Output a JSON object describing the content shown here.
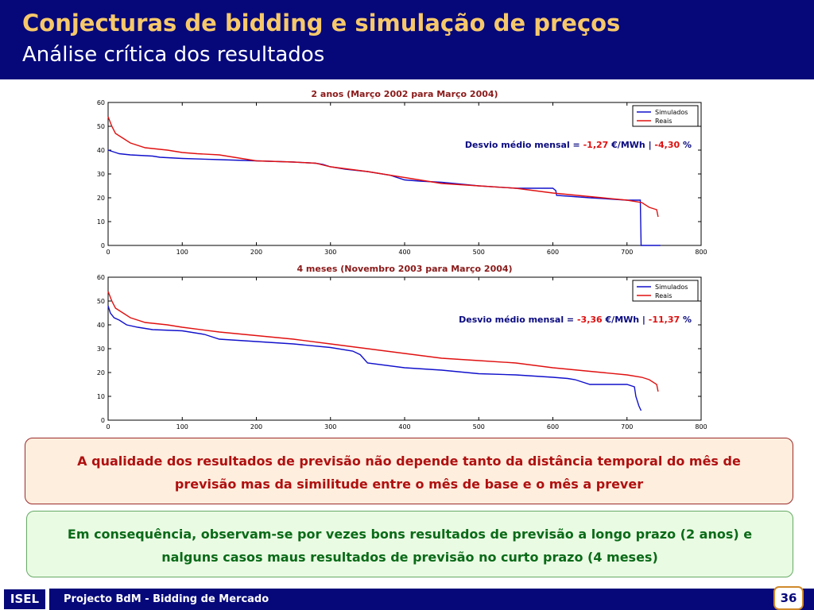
{
  "slide": {
    "title": "Conjecturas de bidding e simulação de preços",
    "subtitle": "Análise crítica dos resultados",
    "notes": [
      "A qualidade dos resultados de previsão não depende tanto da distância temporal do mês de previsão mas da similitude entre o mês de base e o mês a prever",
      "Em consequência, observam-se por vezes bons resultados de previsão a longo prazo (2 anos) e nalguns casos maus resultados de previsão no curto prazo (4 meses)"
    ],
    "footer": {
      "org": "ISEL",
      "project": "Projecto BdM - Bidding de Mercado",
      "page": "36"
    }
  },
  "colors": {
    "header": "#06087a",
    "title": "#f6c86a",
    "simulados": "#1010cc",
    "reais": "#e01010",
    "chart_title": "#8b1a1a"
  },
  "chart_data": [
    {
      "type": "line",
      "title": "2 anos (Março 2002 para Março 2004)",
      "xlim": [
        0,
        800
      ],
      "ylim": [
        0,
        60
      ],
      "xticks": [
        0,
        100,
        200,
        300,
        400,
        500,
        600,
        700,
        800
      ],
      "yticks": [
        0,
        10,
        20,
        30,
        40,
        50,
        60
      ],
      "legend": "top-right",
      "annotation": {
        "prefix": "Desvio médio mensal = ",
        "value1": "-1,27",
        "unit1": " €/MWh | ",
        "value2": "-4,30",
        "unit2": " %"
      },
      "series": [
        {
          "name": "Simulados",
          "color": "#1010cc",
          "x": [
            0,
            10,
            15,
            30,
            60,
            70,
            100,
            150,
            200,
            250,
            280,
            290,
            300,
            320,
            350,
            380,
            400,
            420,
            450,
            500,
            550,
            600,
            604,
            605,
            650,
            700,
            718,
            719,
            745
          ],
          "y": [
            40,
            39,
            38.5,
            38,
            37.5,
            37,
            36.5,
            36,
            35.5,
            35,
            34.5,
            34,
            33,
            32,
            31,
            29.5,
            27.5,
            27,
            26.5,
            25,
            24,
            24,
            23,
            21,
            20,
            19,
            19,
            0,
            0
          ]
        },
        {
          "name": "Reais",
          "color": "#e01010",
          "x": [
            0,
            5,
            10,
            20,
            30,
            50,
            80,
            100,
            120,
            150,
            170,
            200,
            250,
            280,
            300,
            350,
            400,
            450,
            500,
            550,
            600,
            650,
            700,
            720,
            730,
            740,
            742
          ],
          "y": [
            54,
            50,
            47,
            45,
            43,
            41,
            40,
            39,
            38.5,
            38,
            37,
            35.5,
            35,
            34.5,
            33,
            31,
            28.5,
            26,
            25,
            24,
            22,
            20.5,
            19,
            18,
            16,
            15,
            12
          ]
        }
      ]
    },
    {
      "type": "line",
      "title": "4 meses (Novembro 2003 para Março 2004)",
      "xlim": [
        0,
        800
      ],
      "ylim": [
        0,
        60
      ],
      "xticks": [
        0,
        100,
        200,
        300,
        400,
        500,
        600,
        700,
        800
      ],
      "yticks": [
        0,
        10,
        20,
        30,
        40,
        50,
        60
      ],
      "legend": "top-right",
      "annotation": {
        "prefix": "Desvio médio mensal = ",
        "value1": "-3,36",
        "unit1": " €/MWh | ",
        "value2": "-11,37",
        "unit2": " %"
      },
      "series": [
        {
          "name": "Simulados",
          "color": "#1010cc",
          "x": [
            0,
            3,
            8,
            15,
            25,
            40,
            60,
            100,
            130,
            150,
            200,
            250,
            300,
            330,
            340,
            350,
            400,
            450,
            500,
            550,
            600,
            620,
            630,
            650,
            700,
            710,
            712,
            716,
            719
          ],
          "y": [
            48,
            45,
            43,
            42,
            40,
            39,
            38,
            37.5,
            36,
            34,
            33,
            32,
            30.5,
            29,
            27.5,
            24,
            22,
            21,
            19.5,
            19,
            18,
            17.5,
            17,
            15,
            15,
            14,
            10,
            6,
            4
          ]
        },
        {
          "name": "Reais",
          "color": "#e01010",
          "x": [
            0,
            5,
            10,
            20,
            30,
            50,
            80,
            100,
            150,
            200,
            250,
            300,
            350,
            400,
            450,
            500,
            550,
            600,
            650,
            700,
            720,
            730,
            740,
            742
          ],
          "y": [
            54,
            50,
            47,
            45,
            43,
            41,
            40,
            39,
            37,
            35.5,
            34,
            32,
            30,
            28,
            26,
            25,
            24,
            22,
            20.5,
            19,
            18,
            17,
            15,
            12
          ]
        }
      ]
    }
  ]
}
